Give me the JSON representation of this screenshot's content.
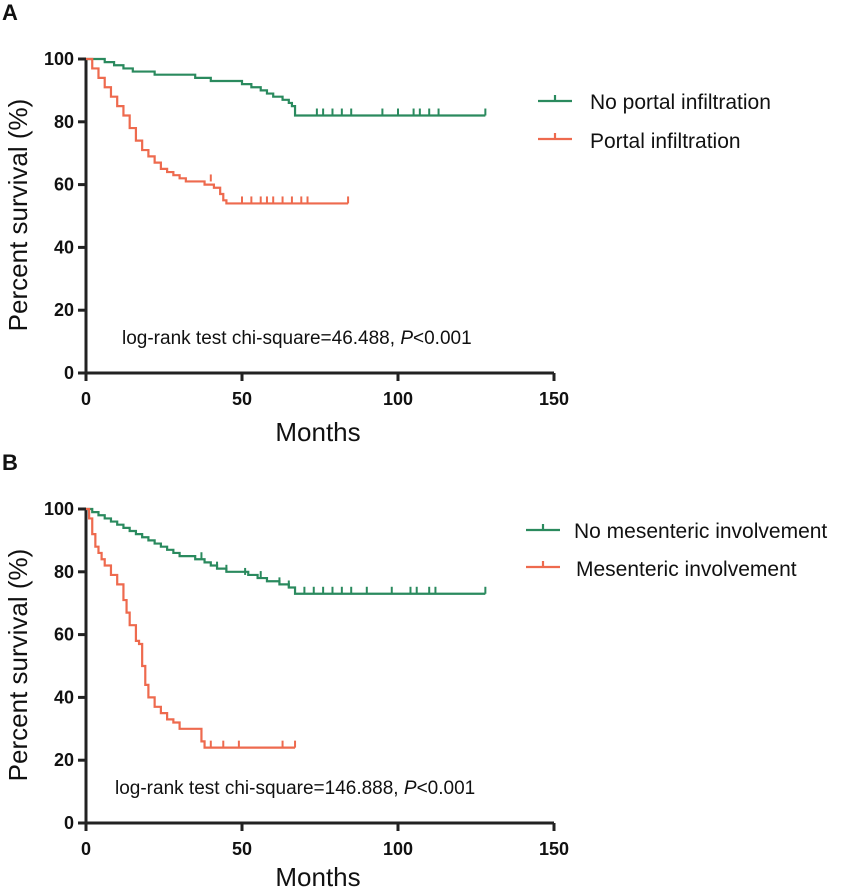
{
  "colors": {
    "green": "#2a8a5e",
    "orange": "#ee6a4e",
    "axis": "#222222"
  },
  "chart_data": [
    {
      "panel_label": "A",
      "type": "line",
      "title": "",
      "xlabel": "Months",
      "ylabel": "Percent survival (%)",
      "xlim": [
        0,
        150
      ],
      "ylim": [
        0,
        100
      ],
      "x_ticks": [
        0,
        50,
        100,
        150
      ],
      "y_ticks": [
        0,
        20,
        40,
        60,
        80,
        100
      ],
      "grid": false,
      "legend_position": "right",
      "annotation": {
        "prefix": "log-rank test chi-square=46.488, ",
        "italic": "P",
        "suffix": "<0.001"
      },
      "series": [
        {
          "name": "No portal infiltration",
          "color": "#2a8a5e",
          "x": [
            0,
            3,
            6,
            9,
            12,
            15,
            18,
            22,
            26,
            30,
            35,
            40,
            45,
            50,
            53,
            56,
            58,
            60,
            63,
            65,
            66,
            67,
            128
          ],
          "y": [
            100,
            100,
            99,
            98,
            97,
            96,
            96,
            95,
            95,
            95,
            94,
            93,
            93,
            92,
            91,
            90,
            89,
            88,
            87,
            86,
            85,
            82,
            82
          ],
          "censored": [
            [
              74,
              82
            ],
            [
              76,
              82
            ],
            [
              79,
              82
            ],
            [
              82,
              82
            ],
            [
              85,
              82
            ],
            [
              95,
              82
            ],
            [
              100,
              82
            ],
            [
              105,
              82
            ],
            [
              107,
              82
            ],
            [
              110,
              82
            ],
            [
              113,
              82
            ],
            [
              128,
              82
            ]
          ]
        },
        {
          "name": "Portal infiltration",
          "color": "#ee6a4e",
          "x": [
            0,
            2,
            4,
            6,
            8,
            10,
            12,
            14,
            16,
            18,
            20,
            22,
            24,
            26,
            28,
            30,
            32,
            35,
            38,
            41,
            43,
            44,
            45,
            84
          ],
          "y": [
            100,
            97,
            94,
            91,
            88,
            85,
            82,
            78,
            74,
            71,
            69,
            67,
            65,
            64,
            63,
            62,
            61,
            61,
            60,
            59,
            57,
            55,
            54,
            54
          ],
          "censored": [
            [
              40,
              61
            ],
            [
              50,
              54
            ],
            [
              53,
              54
            ],
            [
              56,
              54
            ],
            [
              58,
              54
            ],
            [
              60,
              54
            ],
            [
              63,
              54
            ],
            [
              66,
              54
            ],
            [
              69,
              54
            ],
            [
              71,
              54
            ],
            [
              84,
              54
            ]
          ]
        }
      ]
    },
    {
      "panel_label": "B",
      "type": "line",
      "title": "",
      "xlabel": "Months",
      "ylabel": "Percent survival (%)",
      "xlim": [
        0,
        150
      ],
      "ylim": [
        0,
        100
      ],
      "x_ticks": [
        0,
        50,
        100,
        150
      ],
      "y_ticks": [
        0,
        20,
        40,
        60,
        80,
        100
      ],
      "grid": false,
      "legend_position": "right",
      "annotation": {
        "prefix": "log-rank test chi-square=146.888, ",
        "italic": "P",
        "suffix": "<0.001"
      },
      "series": [
        {
          "name": "No mesenteric involvement",
          "color": "#2a8a5e",
          "x": [
            0,
            2,
            4,
            6,
            8,
            10,
            12,
            14,
            16,
            18,
            20,
            22,
            24,
            26,
            28,
            30,
            32,
            35,
            38,
            40,
            42,
            45,
            48,
            52,
            55,
            58,
            60,
            62,
            65,
            67,
            128
          ],
          "y": [
            100,
            99,
            98,
            97,
            96,
            95,
            94,
            93,
            92,
            91,
            90,
            89,
            88,
            87,
            86,
            85,
            85,
            84,
            83,
            82,
            81,
            80,
            80,
            79,
            78,
            77,
            77,
            76,
            75,
            73,
            73
          ],
          "censored": [
            [
              37,
              84
            ],
            [
              42,
              81
            ],
            [
              45,
              80
            ],
            [
              51,
              79
            ],
            [
              56,
              78
            ],
            [
              62,
              76
            ],
            [
              65,
              75
            ],
            [
              70,
              73
            ],
            [
              73,
              73
            ],
            [
              76,
              73
            ],
            [
              79,
              73
            ],
            [
              82,
              73
            ],
            [
              85,
              73
            ],
            [
              90,
              73
            ],
            [
              98,
              73
            ],
            [
              104,
              73
            ],
            [
              106,
              73
            ],
            [
              110,
              73
            ],
            [
              112,
              73
            ],
            [
              128,
              73
            ]
          ]
        },
        {
          "name": "Mesenteric involvement",
          "color": "#ee6a4e",
          "x": [
            0,
            1,
            2,
            3,
            4,
            5,
            6,
            8,
            10,
            12,
            13,
            14,
            16,
            17,
            18,
            19,
            20,
            22,
            24,
            26,
            28,
            30,
            34,
            37,
            38,
            67
          ],
          "y": [
            100,
            97,
            92,
            88,
            86,
            84,
            82,
            79,
            76,
            71,
            67,
            63,
            58,
            57,
            50,
            44,
            40,
            37,
            35,
            33,
            32,
            30,
            30,
            26,
            24,
            24
          ],
          "censored": [
            [
              40,
              24
            ],
            [
              44,
              24
            ],
            [
              49,
              24
            ],
            [
              63,
              24
            ],
            [
              67,
              24
            ]
          ]
        }
      ]
    }
  ]
}
